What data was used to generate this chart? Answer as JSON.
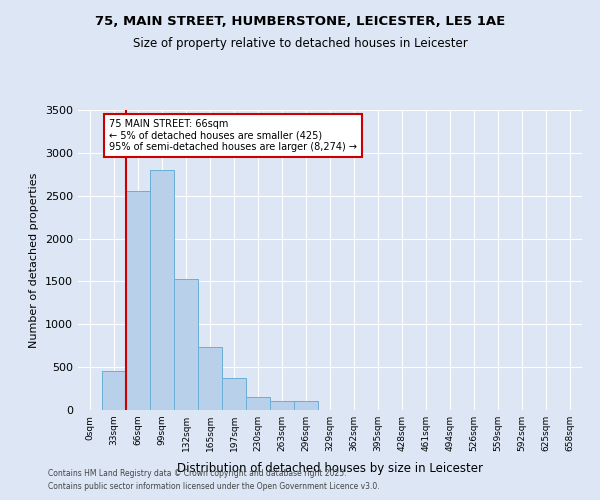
{
  "title_line1": "75, MAIN STREET, HUMBERSTONE, LEICESTER, LE5 1AE",
  "title_line2": "Size of property relative to detached houses in Leicester",
  "xlabel": "Distribution of detached houses by size in Leicester",
  "ylabel": "Number of detached properties",
  "bar_color": "#b8d0ea",
  "bar_edge_color": "#6aaed6",
  "background_color": "#dce6f5",
  "grid_color": "#ffffff",
  "bin_labels": [
    "0sqm",
    "33sqm",
    "66sqm",
    "99sqm",
    "132sqm",
    "165sqm",
    "197sqm",
    "230sqm",
    "263sqm",
    "296sqm",
    "329sqm",
    "362sqm",
    "395sqm",
    "428sqm",
    "461sqm",
    "494sqm",
    "526sqm",
    "559sqm",
    "592sqm",
    "625sqm",
    "658sqm"
  ],
  "bar_values": [
    5,
    450,
    2550,
    2800,
    1530,
    730,
    370,
    150,
    100,
    100,
    0,
    0,
    0,
    0,
    0,
    0,
    0,
    0,
    0,
    0,
    0
  ],
  "ylim": [
    0,
    3500
  ],
  "yticks": [
    0,
    500,
    1000,
    1500,
    2000,
    2500,
    3000,
    3500
  ],
  "property_line_x": 2,
  "annotation_text": "75 MAIN STREET: 66sqm\n← 5% of detached houses are smaller (425)\n95% of semi-detached houses are larger (8,274) →",
  "annotation_box_facecolor": "#ffffff",
  "annotation_box_edgecolor": "#cc0000",
  "property_line_color": "#cc0000",
  "footer_line1": "Contains HM Land Registry data © Crown copyright and database right 2025.",
  "footer_line2": "Contains public sector information licensed under the Open Government Licence v3.0."
}
